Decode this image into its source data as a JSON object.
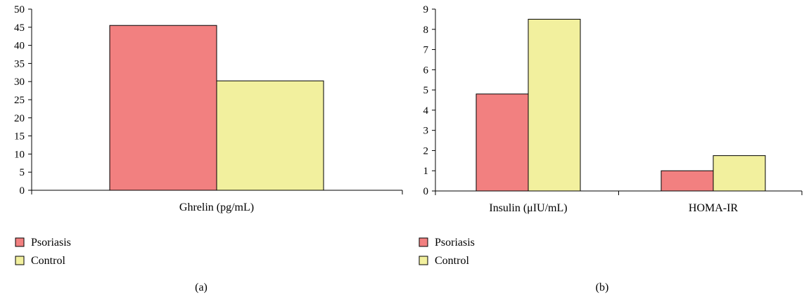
{
  "colors": {
    "psoriasis": "#f28080",
    "control": "#f2f09e",
    "axis": "#000000"
  },
  "chart_data": [
    {
      "panel": "(a)",
      "type": "bar",
      "categories": [
        "Ghrelin (pg/mL)"
      ],
      "series": [
        {
          "name": "Psoriasis",
          "values": [
            45.5
          ]
        },
        {
          "name": "Control",
          "values": [
            30.2
          ]
        }
      ],
      "ylim": [
        0,
        50
      ],
      "yticks": [
        0,
        5,
        10,
        15,
        20,
        25,
        30,
        35,
        40,
        45,
        50
      ],
      "legend": {
        "position": "bottom-left",
        "entries": [
          "Psoriasis",
          "Control"
        ]
      },
      "grid": false
    },
    {
      "panel": "(b)",
      "type": "bar",
      "categories": [
        "Insulin (μIU/mL)",
        "HOMA-IR"
      ],
      "series": [
        {
          "name": "Psoriasis",
          "values": [
            4.8,
            1.0
          ]
        },
        {
          "name": "Control",
          "values": [
            8.5,
            1.75
          ]
        }
      ],
      "ylim": [
        0,
        9
      ],
      "yticks": [
        0,
        1,
        2,
        3,
        4,
        5,
        6,
        7,
        8,
        9
      ],
      "legend": {
        "position": "bottom-left",
        "entries": [
          "Psoriasis",
          "Control"
        ]
      },
      "grid": false
    }
  ]
}
